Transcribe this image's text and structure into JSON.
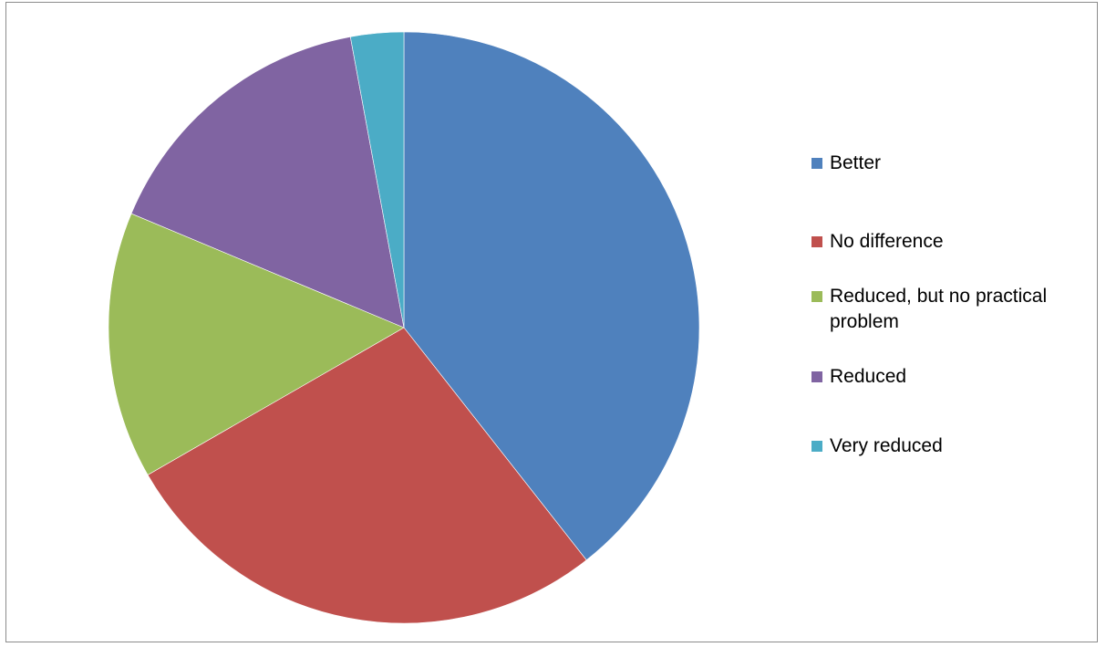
{
  "chart_data": {
    "type": "pie",
    "title": "",
    "categories": [
      "Better",
      "No difference",
      "Reduced, but no practical problem",
      "Reduced",
      "Very reduced"
    ],
    "values": [
      39.4,
      27.3,
      14.6,
      15.8,
      2.9
    ],
    "units": "percent of total (estimated)",
    "start_angle_deg": 0,
    "direction": "clockwise",
    "colors": [
      "#4F81BD",
      "#C0504D",
      "#9BBB59",
      "#8064A2",
      "#4BACC6"
    ],
    "legend": {
      "position": "right",
      "entries": [
        {
          "label": "Better",
          "color": "#4F81BD"
        },
        {
          "label": "No difference",
          "color": "#C0504D"
        },
        {
          "label": "Reduced, but no practical problem",
          "color": "#9BBB59"
        },
        {
          "label": "Reduced",
          "color": "#8064A2"
        },
        {
          "label": "Very reduced",
          "color": "#4BACC6"
        }
      ]
    }
  }
}
